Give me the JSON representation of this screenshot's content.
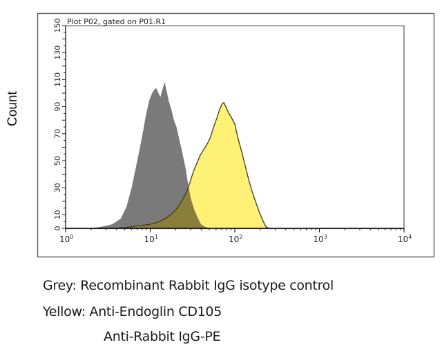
{
  "chart_data": {
    "type": "area",
    "title": "Plot P02, gated on P01.R1",
    "xlabel": "",
    "ylabel": "Count",
    "xscale": "log",
    "xlim": [
      1,
      10000
    ],
    "ylim": [
      0,
      150
    ],
    "x_ticks": [
      {
        "value": 1,
        "base": "10",
        "exp": "0"
      },
      {
        "value": 10,
        "base": "10",
        "exp": "1"
      },
      {
        "value": 100,
        "base": "10",
        "exp": "2"
      },
      {
        "value": 1000,
        "base": "10",
        "exp": "3"
      },
      {
        "value": 10000,
        "base": "10",
        "exp": "4"
      }
    ],
    "y_tick_labels": [
      0,
      10,
      30,
      50,
      70,
      90,
      110,
      130,
      150
    ],
    "grid": false,
    "series": [
      {
        "name": "Grey: Recombinant Rabbit IgG isotype control",
        "color": "#7a7a7a",
        "outline": false,
        "points_log10x_count": [
          [
            0.2,
            0
          ],
          [
            0.35,
            0.5
          ],
          [
            0.45,
            1.5
          ],
          [
            0.55,
            3
          ],
          [
            0.65,
            7
          ],
          [
            0.72,
            16
          ],
          [
            0.78,
            30
          ],
          [
            0.83,
            45
          ],
          [
            0.87,
            57
          ],
          [
            0.91,
            70
          ],
          [
            0.95,
            84
          ],
          [
            0.99,
            95
          ],
          [
            1.03,
            101
          ],
          [
            1.07,
            104
          ],
          [
            1.09,
            101
          ],
          [
            1.12,
            97
          ],
          [
            1.15,
            104
          ],
          [
            1.17,
            108
          ],
          [
            1.19,
            103
          ],
          [
            1.22,
            94
          ],
          [
            1.25,
            88
          ],
          [
            1.28,
            80
          ],
          [
            1.31,
            75
          ],
          [
            1.35,
            64
          ],
          [
            1.38,
            56
          ],
          [
            1.42,
            44
          ],
          [
            1.45,
            32
          ],
          [
            1.48,
            22
          ],
          [
            1.52,
            14
          ],
          [
            1.56,
            8
          ],
          [
            1.6,
            3
          ],
          [
            1.65,
            1
          ],
          [
            1.72,
            0
          ]
        ]
      },
      {
        "name": "Yellow: Anti-Endoglin CD105 / Anti-Rabbit IgG-PE",
        "color": "#fff176",
        "outline": true,
        "outline_color": "#3a3a20",
        "points_log10x_count": [
          [
            0.55,
            0
          ],
          [
            0.7,
            0.5
          ],
          [
            0.87,
            2
          ],
          [
            1.0,
            3
          ],
          [
            1.11,
            5
          ],
          [
            1.2,
            8
          ],
          [
            1.26,
            11
          ],
          [
            1.32,
            15
          ],
          [
            1.38,
            21
          ],
          [
            1.43,
            27
          ],
          [
            1.47,
            34
          ],
          [
            1.51,
            42
          ],
          [
            1.55,
            48
          ],
          [
            1.59,
            54
          ],
          [
            1.63,
            58
          ],
          [
            1.67,
            62
          ],
          [
            1.71,
            67
          ],
          [
            1.75,
            75
          ],
          [
            1.79,
            82
          ],
          [
            1.82,
            88
          ],
          [
            1.85,
            92
          ],
          [
            1.87,
            93
          ],
          [
            1.9,
            89
          ],
          [
            1.93,
            85
          ],
          [
            1.96,
            82
          ],
          [
            2.0,
            77
          ],
          [
            2.04,
            66
          ],
          [
            2.08,
            57
          ],
          [
            2.12,
            47
          ],
          [
            2.16,
            37
          ],
          [
            2.2,
            28
          ],
          [
            2.25,
            19
          ],
          [
            2.29,
            12
          ],
          [
            2.33,
            6
          ],
          [
            2.37,
            1
          ],
          [
            2.4,
            0
          ]
        ]
      }
    ]
  },
  "plot": {
    "title": "Plot P02, gated on P01.R1",
    "ylabel": "Count"
  },
  "captions": {
    "line1": "Grey: Recombinant Rabbit IgG isotype control",
    "line2": "Yellow: Anti-Endoglin CD105",
    "line3": "Anti-Rabbit IgG-PE"
  },
  "colors": {
    "grey_fill": "#7a7a7a",
    "yellow_fill": "#fff176",
    "overlap_fill": "#8a7f3a",
    "frame": "#555555"
  }
}
